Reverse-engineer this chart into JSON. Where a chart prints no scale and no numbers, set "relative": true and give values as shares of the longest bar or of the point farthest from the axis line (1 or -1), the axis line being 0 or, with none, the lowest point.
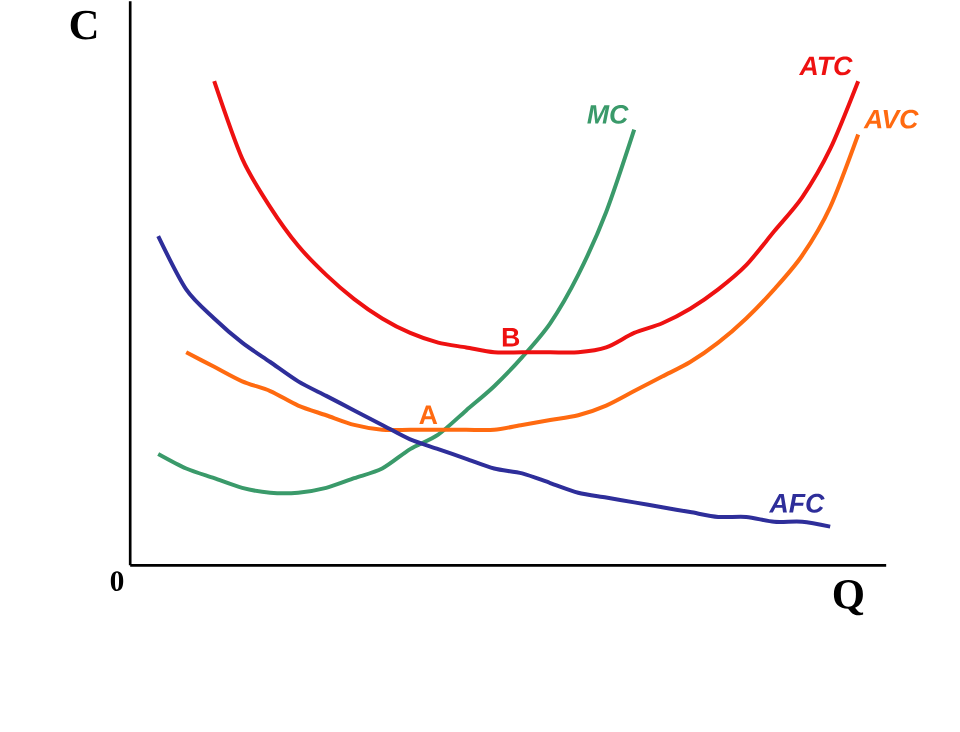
{
  "chart_data": {
    "type": "line",
    "relative": true,
    "xlabel": "Q",
    "ylabel": "C",
    "marker": "none",
    "categories": [
      null,
      null,
      null,
      null,
      null,
      null,
      null,
      null,
      null,
      null,
      null,
      null,
      null,
      null,
      null,
      null,
      null,
      null,
      null,
      null,
      null,
      null,
      null,
      null,
      null,
      null,
      null,
      null
    ],
    "series": [
      {
        "name": "MC",
        "color": "#3a9a6a",
        "values": [
          null,
          0.23,
          0.2,
          0.18,
          0.16,
          0.15,
          0.15,
          0.16,
          0.18,
          0.2,
          0.24,
          0.27,
          0.32,
          0.37,
          0.43,
          0.5,
          0.6,
          0.73,
          0.9,
          null,
          null,
          null,
          null,
          null,
          null,
          null,
          null,
          null
        ]
      },
      {
        "name": "ATC",
        "color": "#ee1111",
        "values": [
          null,
          null,
          null,
          1.0,
          0.84,
          0.74,
          0.66,
          0.6,
          0.55,
          0.51,
          0.48,
          0.46,
          0.45,
          0.44,
          0.44,
          0.44,
          0.44,
          0.45,
          0.48,
          0.5,
          0.53,
          0.57,
          0.62,
          0.69,
          0.76,
          0.86,
          1,
          null
        ]
      },
      {
        "name": "AVC",
        "color": "#ff6a10",
        "values": [
          null,
          null,
          0.44,
          0.41,
          0.38,
          0.36,
          0.33,
          0.31,
          0.29,
          0.28,
          0.28,
          0.28,
          0.28,
          0.28,
          0.29,
          0.3,
          0.31,
          0.33,
          0.36,
          0.39,
          0.42,
          0.46,
          0.51,
          0.57,
          0.64,
          0.74,
          0.89,
          null
        ]
      },
      {
        "name": "AFC",
        "color": "#2e2e9a",
        "values": [
          null,
          0.68,
          0.57,
          0.51,
          0.46,
          0.42,
          0.38,
          0.35,
          0.32,
          0.29,
          0.26,
          0.24,
          0.22,
          0.2,
          0.19,
          0.17,
          0.15,
          0.14,
          0.13,
          0.12,
          0.11,
          0.1,
          0.1,
          0.09,
          0.09,
          0.08,
          null,
          null
        ]
      }
    ],
    "annotations": [
      {
        "text": "A",
        "y": 0.28
      },
      {
        "text": "B",
        "y": 0.44
      },
      "0"
    ]
  }
}
